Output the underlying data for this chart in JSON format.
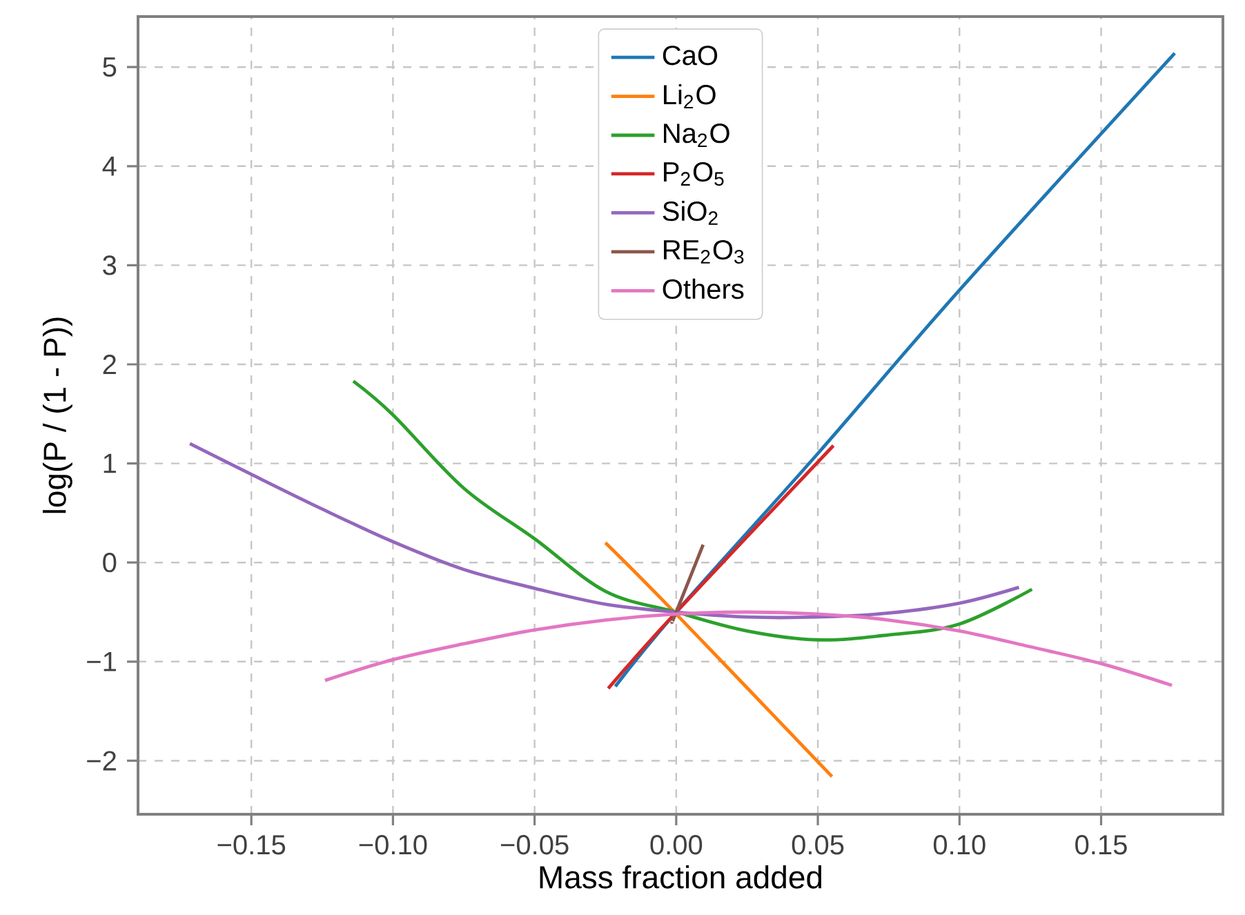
{
  "chart_data": {
    "type": "line",
    "xlabel": "Mass fraction added",
    "ylabel": "log(P / (1 - P))",
    "xlim": [
      -0.19,
      0.193
    ],
    "ylim": [
      -2.54,
      5.51
    ],
    "xticks": [
      {
        "value": -0.15,
        "label": "−0.15"
      },
      {
        "value": -0.1,
        "label": "−0.10"
      },
      {
        "value": -0.05,
        "label": "−0.05"
      },
      {
        "value": 0,
        "label": "0.00"
      },
      {
        "value": 0.05,
        "label": "0.05"
      },
      {
        "value": 0.1,
        "label": "0.10"
      },
      {
        "value": 0.15,
        "label": "0.15"
      }
    ],
    "yticks": [
      {
        "value": -2,
        "label": "−2"
      },
      {
        "value": -1,
        "label": "−1"
      },
      0,
      1,
      2,
      3,
      4,
      5
    ],
    "grid": true,
    "legend": "top",
    "line_style": "solid",
    "marker": "none",
    "series": [
      {
        "name": "CaO",
        "color": "#1f77b4",
        "x": [
          -0.0215,
          0,
          0.05,
          0.1,
          0.176
        ],
        "values": [
          -1.25,
          -0.5,
          1.1,
          2.75,
          5.14
        ]
      },
      {
        "name": "Li$_{2}$O",
        "color": "#ff7f0e",
        "x": [
          -0.025,
          0,
          0.055
        ],
        "values": [
          0.2,
          -0.52,
          -2.16
        ]
      },
      {
        "name": "Na$_{2}$O",
        "color": "#2ca02c",
        "x": [
          -0.114,
          -0.1,
          -0.075,
          -0.05,
          -0.025,
          0,
          0.025,
          0.05,
          0.075,
          0.1,
          0.1256
        ],
        "values": [
          1.83,
          1.49,
          0.75,
          0.24,
          -0.29,
          -0.5,
          -0.69,
          -0.78,
          -0.73,
          -0.62,
          -0.27
        ]
      },
      {
        "name": "P$_{2}$O$_{5}$",
        "color": "#d62728",
        "x": [
          -0.024,
          0,
          0.0555
        ],
        "values": [
          -1.27,
          -0.5,
          1.18
        ]
      },
      {
        "name": "SiO$_{2}$",
        "color": "#9467bd",
        "x": [
          -0.1717,
          -0.15,
          -0.125,
          -0.1,
          -0.075,
          -0.05,
          -0.025,
          0,
          0.025,
          0.05,
          0.075,
          0.1,
          0.121
        ],
        "values": [
          1.2,
          0.89,
          0.54,
          0.21,
          -0.07,
          -0.26,
          -0.42,
          -0.5,
          -0.55,
          -0.55,
          -0.51,
          -0.41,
          -0.25
        ]
      },
      {
        "name": "RE$_{2}$O$_{3}$",
        "color": "#8c564b",
        "x": [
          -0.0015,
          0,
          0.0095
        ],
        "values": [
          -0.6,
          -0.5,
          0.18
        ]
      },
      {
        "name": "Others",
        "color": "#e377c2",
        "x": [
          -0.124,
          -0.1,
          -0.075,
          -0.05,
          -0.025,
          0,
          0.025,
          0.05,
          0.075,
          0.1,
          0.125,
          0.15,
          0.175
        ],
        "values": [
          -1.19,
          -0.98,
          -0.82,
          -0.68,
          -0.58,
          -0.52,
          -0.5,
          -0.52,
          -0.58,
          -0.69,
          -0.85,
          -1.02,
          -1.24
        ]
      }
    ]
  }
}
